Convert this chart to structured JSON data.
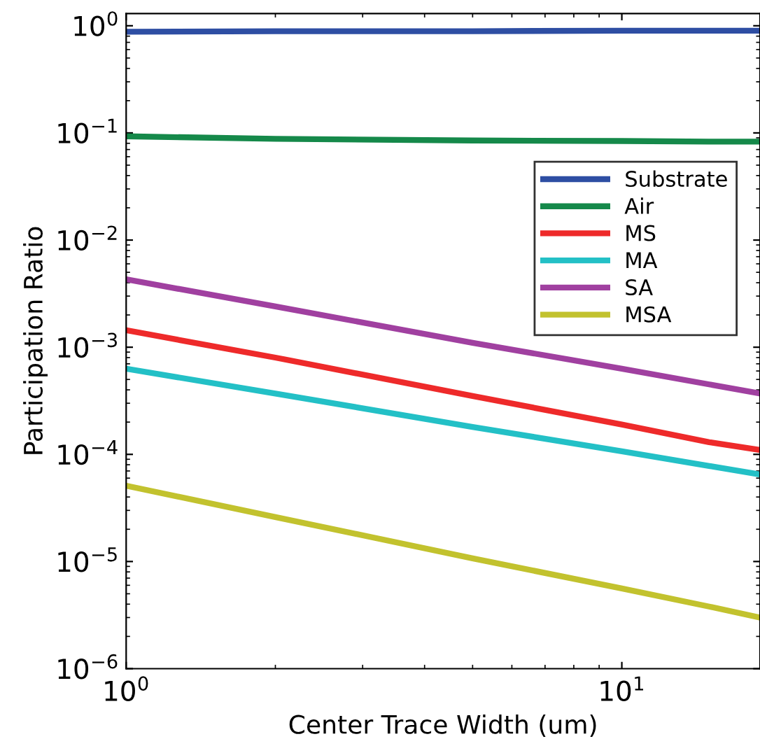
{
  "chart_data": {
    "type": "line",
    "xlabel": "Center Trace Width (um)",
    "ylabel": "Participation Ratio",
    "log": "xy",
    "x": [
      1,
      2,
      5,
      10,
      15,
      19
    ],
    "xlim": [
      1,
      19
    ],
    "xticks": [
      {
        "value": 1,
        "label": "10$^{0}$"
      },
      {
        "value": 10,
        "label": "10$^{1}$"
      }
    ],
    "ylim": [
      1e-06,
      1.3
    ],
    "yticks": [
      {
        "value": 1e-06,
        "label": "10$^{−6}$"
      },
      {
        "value": 1e-05,
        "label": "10$^{−5}$"
      },
      {
        "value": 0.0001,
        "label": "10$^{−4}$"
      },
      {
        "value": 0.001,
        "label": "10$^{−3}$"
      },
      {
        "value": 0.01,
        "label": "10$^{−2}$"
      },
      {
        "value": 0.1,
        "label": "10$^{−1}$"
      },
      {
        "value": 1,
        "label": "10$^{0}$"
      }
    ],
    "legend": "top right",
    "grid": false,
    "marker": "none",
    "line_style": "solid",
    "series": [
      {
        "name": "Substrate",
        "color": "#2e4ea3",
        "values": [
          0.88,
          0.89,
          0.89,
          0.9,
          0.9,
          0.9
        ]
      },
      {
        "name": "Air",
        "color": "#15894a",
        "values": [
          0.093,
          0.088,
          0.085,
          0.084,
          0.083,
          0.083
        ]
      },
      {
        "name": "MS",
        "color": "#ee2a2a",
        "values": [
          0.00144,
          0.0008,
          0.00035,
          0.00019,
          0.00013,
          0.00011
        ]
      },
      {
        "name": "MA",
        "color": "#23c0c6",
        "values": [
          0.00063,
          0.00037,
          0.00018,
          0.000107,
          7.8e-05,
          6.5e-05
        ]
      },
      {
        "name": "SA",
        "color": "#a040a0",
        "values": [
          0.0043,
          0.0024,
          0.0011,
          0.00063,
          0.00045,
          0.00037
        ]
      },
      {
        "name": "MSA",
        "color": "#c2c22e",
        "values": [
          5.1e-05,
          2.6e-05,
          1.07e-05,
          5.6e-06,
          3.8e-06,
          3e-06
        ]
      }
    ]
  }
}
